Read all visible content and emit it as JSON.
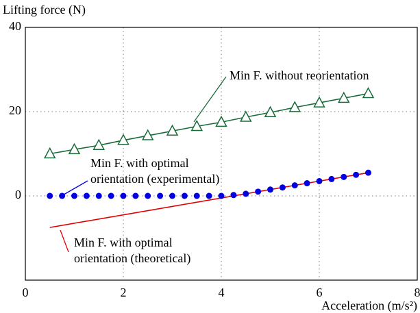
{
  "chart_data": {
    "type": "line",
    "y_label": "Lifting force (N)",
    "x_label": "Acceleration (m/s²)",
    "xlim": [
      0,
      8
    ],
    "xticks": [
      0,
      2,
      4,
      6,
      8
    ],
    "ylim": [
      -20,
      40
    ],
    "yticks": [
      0,
      20,
      40
    ],
    "grid": true,
    "series": [
      {
        "color": "#1a6b3a",
        "marker": "triangle",
        "line": true,
        "x": [
          0.5,
          1,
          1.5,
          2,
          2.5,
          3,
          3.5,
          4,
          4.5,
          5,
          5.5,
          6,
          6.5,
          7
        ],
        "values": [
          10,
          11,
          12,
          13.2,
          14.3,
          15.4,
          16.5,
          17.5,
          18.7,
          19.8,
          21,
          22.1,
          23.2,
          24.3
        ]
      },
      {
        "color": "#e00000",
        "marker": null,
        "line": true,
        "x": [
          0.5,
          7
        ],
        "values": [
          -7.5,
          5.5
        ]
      },
      {
        "color": "#0000e0",
        "marker": "circle",
        "line": false,
        "x": [
          0.5,
          0.75,
          1,
          1.25,
          1.5,
          1.75,
          2,
          2.25,
          2.5,
          2.75,
          3,
          3.25,
          3.5,
          3.75,
          4,
          4.25,
          4.5,
          4.75,
          5,
          5.25,
          5.5,
          5.75,
          6,
          6.25,
          6.5,
          6.75,
          7
        ],
        "values": [
          0,
          0,
          0,
          0,
          0,
          0,
          0,
          0,
          0,
          0,
          0,
          0,
          0,
          0,
          0,
          0.2,
          0.5,
          1,
          1.5,
          2,
          2.5,
          3,
          3.5,
          4,
          4.5,
          5,
          5.5
        ]
      }
    ],
    "annotations": [
      {
        "text": [
          "Min F. without reorientation"
        ],
        "color": "#1a6b3a"
      },
      {
        "text": [
          "Min F. with optimal",
          "orientation (experimental)"
        ],
        "color": "#0000e0"
      },
      {
        "text": [
          "Min F. with optimal",
          "orientation (theoretical)"
        ],
        "color": "#e00000"
      }
    ]
  }
}
